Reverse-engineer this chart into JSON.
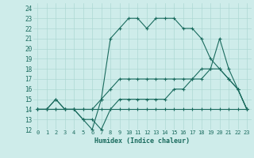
{
  "xlabel": "Humidex (Indice chaleur)",
  "background_color": "#ceecea",
  "grid_color": "#add8d4",
  "line_color": "#1a6b5e",
  "xlim": [
    -0.5,
    23.5
  ],
  "ylim": [
    12,
    24.5
  ],
  "xticks": [
    0,
    1,
    2,
    3,
    4,
    5,
    6,
    7,
    8,
    9,
    10,
    11,
    12,
    13,
    14,
    15,
    16,
    17,
    18,
    19,
    20,
    21,
    22,
    23
  ],
  "yticks": [
    12,
    13,
    14,
    15,
    16,
    17,
    18,
    19,
    20,
    21,
    22,
    23,
    24
  ],
  "line_jagged_top": [
    14,
    14,
    15,
    14,
    14,
    13,
    12,
    15,
    21,
    22,
    23,
    23,
    22,
    23,
    23,
    23,
    22,
    22,
    21,
    19,
    18,
    17,
    16,
    14
  ],
  "line_mid_upper": [
    14,
    14,
    14,
    14,
    14,
    14,
    14,
    15,
    16,
    17,
    17,
    17,
    17,
    17,
    17,
    17,
    17,
    17,
    18,
    18,
    18,
    17,
    16,
    14
  ],
  "line_lower_jagged": [
    14,
    14,
    15,
    14,
    14,
    13,
    13,
    12,
    14,
    15,
    15,
    15,
    15,
    15,
    15,
    16,
    16,
    17,
    17,
    18,
    21,
    18,
    16,
    14
  ],
  "line_flat": [
    14,
    14,
    14,
    14,
    14,
    14,
    14,
    14,
    14,
    14,
    14,
    14,
    14,
    14,
    14,
    14,
    14,
    14,
    14,
    14,
    14,
    14,
    14,
    14
  ]
}
